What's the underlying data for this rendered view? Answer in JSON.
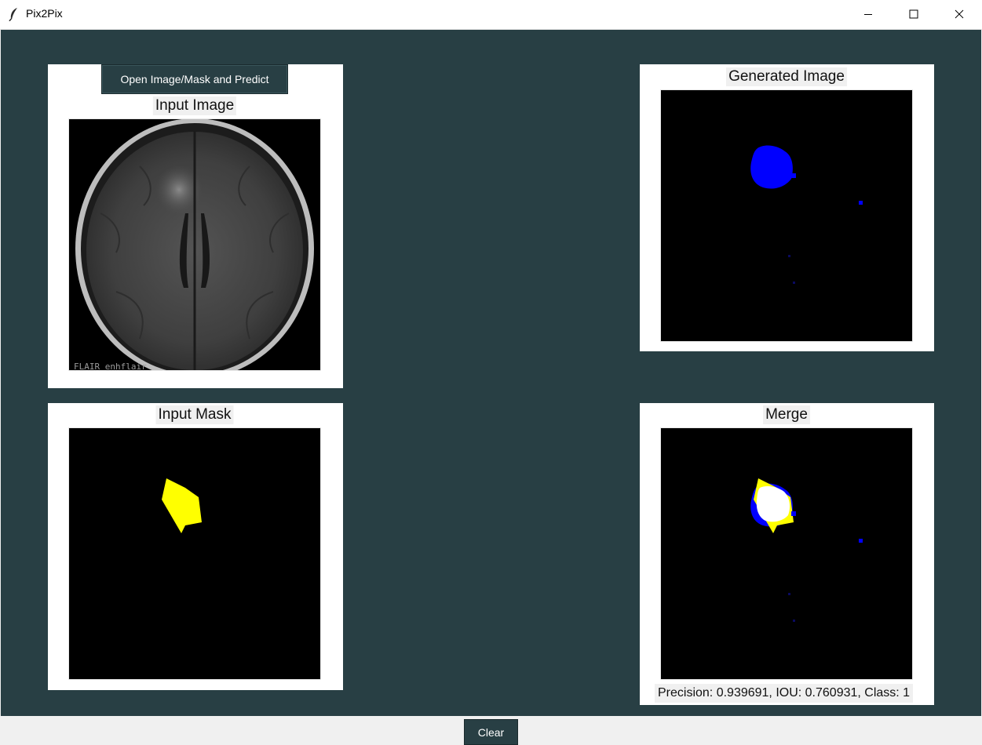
{
  "window": {
    "title": "Pix2Pix",
    "app_icon": "feather-icon",
    "controls": [
      "minimize-icon",
      "maximize-icon",
      "close-icon"
    ]
  },
  "colors": {
    "background": "#283f44",
    "panel": "#ffffff",
    "mask": "#ffff00",
    "prediction": "#0000ff",
    "overlap": "#ffffff"
  },
  "toolbar": {
    "open_button_label": "Open Image/Mask and Predict",
    "clear_button_label": "Clear"
  },
  "panels": {
    "input_image": {
      "label": "Input Image",
      "overlay_text": "FLAIR enhflair"
    },
    "input_mask": {
      "label": "Input Mask"
    },
    "generated_image": {
      "label": "Generated Image"
    },
    "merge": {
      "label": "Merge"
    }
  },
  "results": {
    "metrics_text": "Precision: 0.939691, IOU: 0.760931, Class: 1",
    "precision": 0.939691,
    "iou": 0.760931,
    "class": 1
  }
}
